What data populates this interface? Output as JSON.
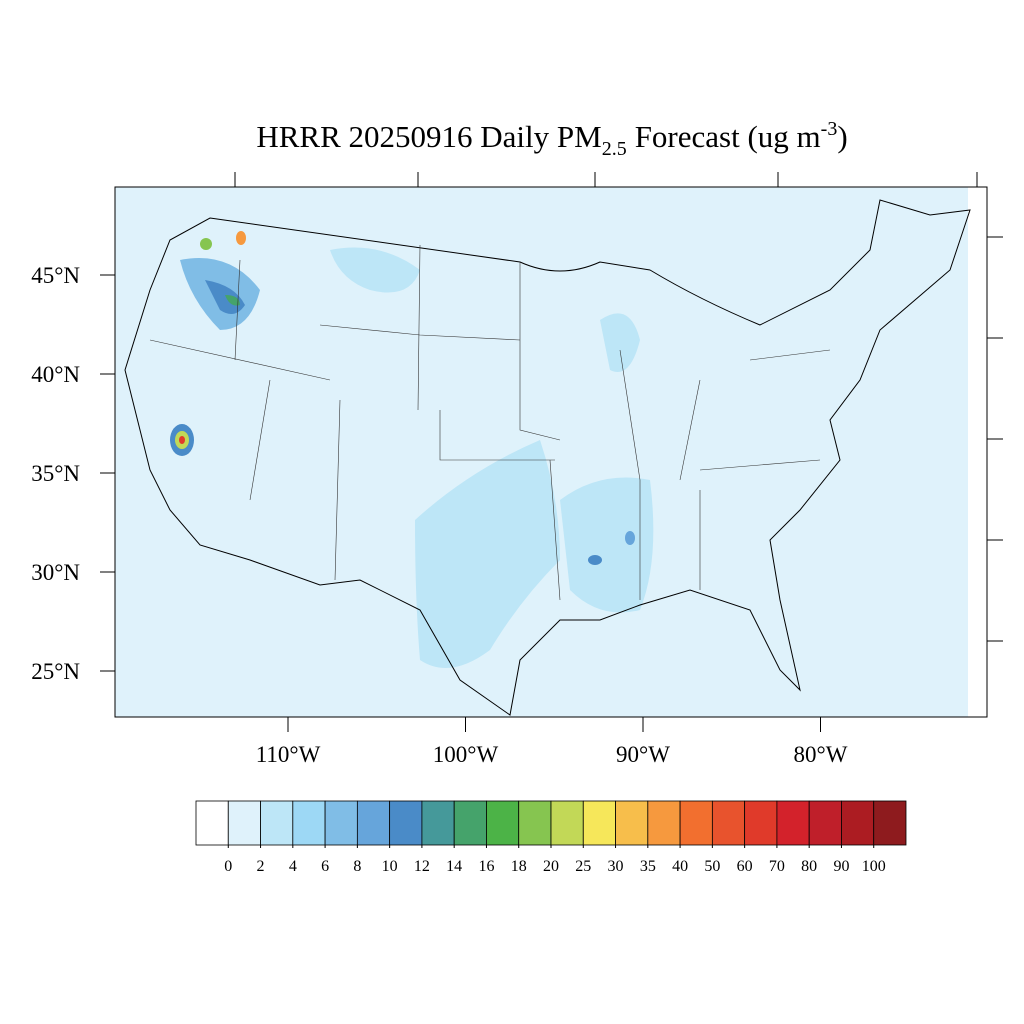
{
  "title": {
    "main": "HRRR 20250916 Daily PM",
    "subscript": "2.5",
    "rest": "Forecast (ug m",
    "superscript": "-3",
    "end": ")"
  },
  "map": {
    "latitude_labels": [
      {
        "value": 45,
        "label": "45°N"
      },
      {
        "value": 40,
        "label": "40°N"
      },
      {
        "value": 35,
        "label": "35°N"
      },
      {
        "value": 30,
        "label": "30°N"
      },
      {
        "value": 25,
        "label": "25°N"
      }
    ],
    "longitude_labels": [
      {
        "value": -110,
        "label": "110°W"
      },
      {
        "value": -100,
        "label": "100°W"
      },
      {
        "value": -90,
        "label": "90°W"
      },
      {
        "value": -80,
        "label": "80°W"
      }
    ]
  },
  "colorbar": {
    "levels": [
      0,
      2,
      4,
      6,
      8,
      10,
      12,
      14,
      16,
      18,
      20,
      25,
      30,
      35,
      40,
      50,
      60,
      70,
      80,
      90,
      100
    ],
    "colors": [
      "#ffffff",
      "#dff2fb",
      "#bde6f7",
      "#9dd8f5",
      "#80bde6",
      "#66a5db",
      "#4a8bc8",
      "#45999a",
      "#45a36b",
      "#4cb347",
      "#86c550",
      "#c2d857",
      "#f6e75a",
      "#f7be4b",
      "#f6993e",
      "#f26f2f",
      "#e8532d",
      "#e03a2a",
      "#d3222b",
      "#bf1f2a",
      "#ac1c22",
      "#8e1b1e"
    ]
  }
}
